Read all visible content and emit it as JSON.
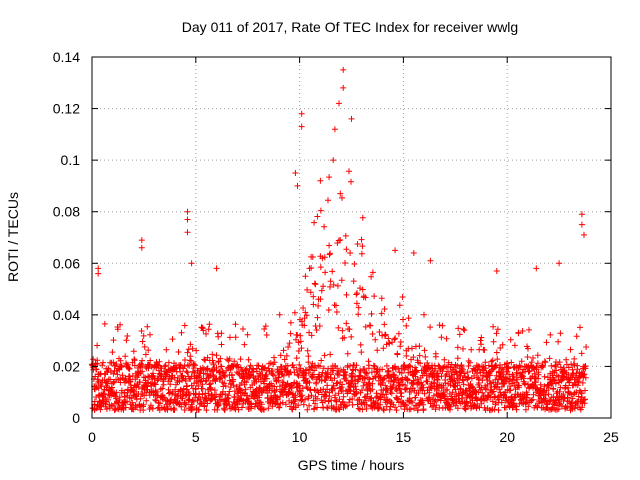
{
  "chart_data": {
    "type": "scatter",
    "title": "Day 011 of 2017, Rate Of TEC Index for receiver wwlg",
    "xlabel": "GPS time / hours",
    "ylabel": "ROTI / TECUs",
    "xlim": [
      0,
      25
    ],
    "ylim": [
      0,
      0.14
    ],
    "xticks": [
      0,
      5,
      10,
      15,
      20,
      25
    ],
    "xtick_labels": [
      "0",
      "5",
      "10",
      "15",
      "20",
      "25"
    ],
    "yticks": [
      0,
      0.02,
      0.04,
      0.06,
      0.08,
      0.1,
      0.12,
      0.14
    ],
    "ytick_labels": [
      "0",
      "0.02",
      "0.04",
      "0.06",
      "0.08",
      "0.1",
      "0.12",
      "0.14"
    ],
    "grid": true,
    "marker": "+",
    "series": [
      {
        "name": "ROTI",
        "color": "#ff0000",
        "x_range": [
          0,
          23.8
        ],
        "baseline_range": [
          0.003,
          0.035
        ],
        "notable_points": [
          {
            "x": 12.1,
            "y": 0.135
          },
          {
            "x": 12.1,
            "y": 0.128
          },
          {
            "x": 11.9,
            "y": 0.122
          },
          {
            "x": 10.1,
            "y": 0.118
          },
          {
            "x": 10.1,
            "y": 0.113
          },
          {
            "x": 12.5,
            "y": 0.116
          },
          {
            "x": 11.7,
            "y": 0.112
          },
          {
            "x": 9.8,
            "y": 0.095
          },
          {
            "x": 9.9,
            "y": 0.09
          },
          {
            "x": 11.0,
            "y": 0.092
          },
          {
            "x": 4.6,
            "y": 0.08
          },
          {
            "x": 4.6,
            "y": 0.077
          },
          {
            "x": 4.6,
            "y": 0.072
          },
          {
            "x": 23.6,
            "y": 0.079
          },
          {
            "x": 23.6,
            "y": 0.075
          },
          {
            "x": 23.7,
            "y": 0.071
          },
          {
            "x": 2.4,
            "y": 0.069
          },
          {
            "x": 2.4,
            "y": 0.066
          },
          {
            "x": 4.8,
            "y": 0.06
          },
          {
            "x": 6.0,
            "y": 0.058
          },
          {
            "x": 0.3,
            "y": 0.058
          },
          {
            "x": 0.3,
            "y": 0.056
          },
          {
            "x": 14.6,
            "y": 0.065
          },
          {
            "x": 15.5,
            "y": 0.064
          },
          {
            "x": 16.3,
            "y": 0.061
          },
          {
            "x": 22.5,
            "y": 0.06
          },
          {
            "x": 21.4,
            "y": 0.058
          },
          {
            "x": 19.5,
            "y": 0.057
          }
        ]
      }
    ]
  }
}
